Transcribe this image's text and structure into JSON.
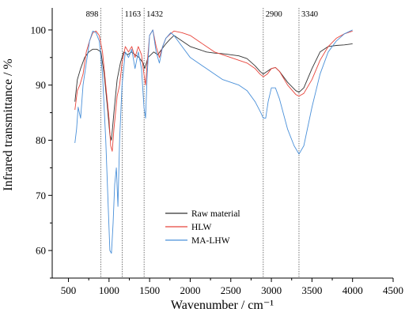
{
  "chart_data": {
    "type": "line",
    "xlabel": "Wavenumber / cm⁻¹",
    "ylabel": "Infrared transmittance / %",
    "xlim": [
      300,
      4500
    ],
    "ylim": [
      55,
      104
    ],
    "x_ticks": [
      500,
      1000,
      1500,
      2000,
      2500,
      3000,
      3500,
      4000,
      4500
    ],
    "y_ticks": [
      60,
      70,
      80,
      90,
      100
    ],
    "grid": false,
    "legend_position": "lower-center",
    "annotations": [
      {
        "label": "898",
        "x": 898
      },
      {
        "label": "1163",
        "x": 1163
      },
      {
        "label": "1432",
        "x": 1432
      },
      {
        "label": "2900",
        "x": 2900
      },
      {
        "label": "3340",
        "x": 3340
      }
    ],
    "series": [
      {
        "name": "Raw material",
        "color": "#333333",
        "points": [
          [
            580,
            87
          ],
          [
            610,
            91
          ],
          [
            650,
            93
          ],
          [
            700,
            95
          ],
          [
            750,
            96
          ],
          [
            800,
            96.5
          ],
          [
            850,
            96.5
          ],
          [
            900,
            96
          ],
          [
            940,
            92
          ],
          [
            980,
            86
          ],
          [
            1010,
            81
          ],
          [
            1030,
            80
          ],
          [
            1060,
            85
          ],
          [
            1100,
            91
          ],
          [
            1140,
            94
          ],
          [
            1180,
            96
          ],
          [
            1230,
            95.5
          ],
          [
            1280,
            96
          ],
          [
            1320,
            95.5
          ],
          [
            1370,
            95
          ],
          [
            1420,
            94
          ],
          [
            1440,
            93
          ],
          [
            1480,
            95
          ],
          [
            1550,
            96
          ],
          [
            1600,
            95.5
          ],
          [
            1650,
            96.5
          ],
          [
            1700,
            97.5
          ],
          [
            1750,
            98.3
          ],
          [
            1800,
            99
          ],
          [
            1900,
            98
          ],
          [
            2000,
            97
          ],
          [
            2100,
            96.5
          ],
          [
            2200,
            96
          ],
          [
            2300,
            95.8
          ],
          [
            2400,
            95.7
          ],
          [
            2500,
            95.5
          ],
          [
            2600,
            95.3
          ],
          [
            2700,
            94.8
          ],
          [
            2800,
            93.5
          ],
          [
            2860,
            92.5
          ],
          [
            2900,
            92
          ],
          [
            2950,
            92.5
          ],
          [
            3000,
            93
          ],
          [
            3050,
            93.2
          ],
          [
            3100,
            92.5
          ],
          [
            3200,
            90.5
          ],
          [
            3300,
            89
          ],
          [
            3340,
            88.7
          ],
          [
            3400,
            89.5
          ],
          [
            3500,
            93
          ],
          [
            3600,
            96
          ],
          [
            3700,
            97
          ],
          [
            3800,
            97.2
          ],
          [
            3900,
            97.3
          ],
          [
            4000,
            97.5
          ]
        ]
      },
      {
        "name": "HLW",
        "color": "#e8453c",
        "points": [
          [
            580,
            85.5
          ],
          [
            610,
            89
          ],
          [
            640,
            90
          ],
          [
            680,
            92
          ],
          [
            720,
            96
          ],
          [
            760,
            98
          ],
          [
            800,
            99.5
          ],
          [
            840,
            99.8
          ],
          [
            880,
            99
          ],
          [
            920,
            96
          ],
          [
            960,
            90
          ],
          [
            1000,
            84
          ],
          [
            1020,
            79
          ],
          [
            1040,
            78
          ],
          [
            1060,
            82
          ],
          [
            1100,
            88
          ],
          [
            1130,
            90
          ],
          [
            1160,
            94
          ],
          [
            1200,
            97
          ],
          [
            1240,
            96
          ],
          [
            1280,
            97
          ],
          [
            1320,
            95
          ],
          [
            1360,
            97
          ],
          [
            1400,
            95.5
          ],
          [
            1430,
            92
          ],
          [
            1450,
            90
          ],
          [
            1470,
            94
          ],
          [
            1500,
            99
          ],
          [
            1540,
            100
          ],
          [
            1580,
            97
          ],
          [
            1620,
            95
          ],
          [
            1660,
            97
          ],
          [
            1700,
            98.5
          ],
          [
            1750,
            99.2
          ],
          [
            1800,
            99.8
          ],
          [
            1900,
            99.5
          ],
          [
            2000,
            99
          ],
          [
            2100,
            98
          ],
          [
            2200,
            97
          ],
          [
            2300,
            96
          ],
          [
            2400,
            95.5
          ],
          [
            2500,
            95
          ],
          [
            2600,
            94.5
          ],
          [
            2700,
            94
          ],
          [
            2800,
            93
          ],
          [
            2860,
            92
          ],
          [
            2900,
            91.5
          ],
          [
            2950,
            92
          ],
          [
            3000,
            93
          ],
          [
            3050,
            93.2
          ],
          [
            3100,
            92.5
          ],
          [
            3200,
            90
          ],
          [
            3300,
            88.3
          ],
          [
            3340,
            88
          ],
          [
            3400,
            88.5
          ],
          [
            3500,
            91
          ],
          [
            3600,
            94.5
          ],
          [
            3700,
            97
          ],
          [
            3800,
            98.5
          ],
          [
            3900,
            99.3
          ],
          [
            4000,
            99.8
          ]
        ]
      },
      {
        "name": "MA-LHW",
        "color": "#4a90d9",
        "points": [
          [
            580,
            79.5
          ],
          [
            600,
            82
          ],
          [
            620,
            86
          ],
          [
            650,
            84
          ],
          [
            680,
            90
          ],
          [
            720,
            94
          ],
          [
            760,
            98
          ],
          [
            800,
            99.8
          ],
          [
            840,
            99.5
          ],
          [
            880,
            98
          ],
          [
            920,
            92
          ],
          [
            960,
            80
          ],
          [
            990,
            68
          ],
          [
            1010,
            60
          ],
          [
            1030,
            59.5
          ],
          [
            1050,
            65
          ],
          [
            1070,
            72
          ],
          [
            1090,
            75
          ],
          [
            1110,
            68
          ],
          [
            1130,
            80
          ],
          [
            1160,
            90
          ],
          [
            1200,
            96
          ],
          [
            1240,
            95
          ],
          [
            1280,
            96.5
          ],
          [
            1320,
            93
          ],
          [
            1360,
            96
          ],
          [
            1400,
            93
          ],
          [
            1430,
            86
          ],
          [
            1450,
            84
          ],
          [
            1470,
            92
          ],
          [
            1500,
            99
          ],
          [
            1540,
            100
          ],
          [
            1580,
            96
          ],
          [
            1620,
            94
          ],
          [
            1660,
            97
          ],
          [
            1700,
            98.5
          ],
          [
            1760,
            99.5
          ],
          [
            1800,
            99
          ],
          [
            1900,
            97
          ],
          [
            2000,
            95
          ],
          [
            2100,
            94
          ],
          [
            2200,
            93
          ],
          [
            2300,
            92
          ],
          [
            2400,
            91
          ],
          [
            2500,
            90.5
          ],
          [
            2600,
            90
          ],
          [
            2700,
            89
          ],
          [
            2800,
            87
          ],
          [
            2870,
            85
          ],
          [
            2900,
            84
          ],
          [
            2930,
            84
          ],
          [
            2960,
            87
          ],
          [
            3000,
            89.5
          ],
          [
            3050,
            89.5
          ],
          [
            3100,
            87.5
          ],
          [
            3200,
            82
          ],
          [
            3280,
            79
          ],
          [
            3340,
            77.5
          ],
          [
            3400,
            79
          ],
          [
            3500,
            86
          ],
          [
            3600,
            92
          ],
          [
            3700,
            96
          ],
          [
            3800,
            98
          ],
          [
            3900,
            99.3
          ],
          [
            4000,
            100
          ]
        ]
      }
    ]
  }
}
